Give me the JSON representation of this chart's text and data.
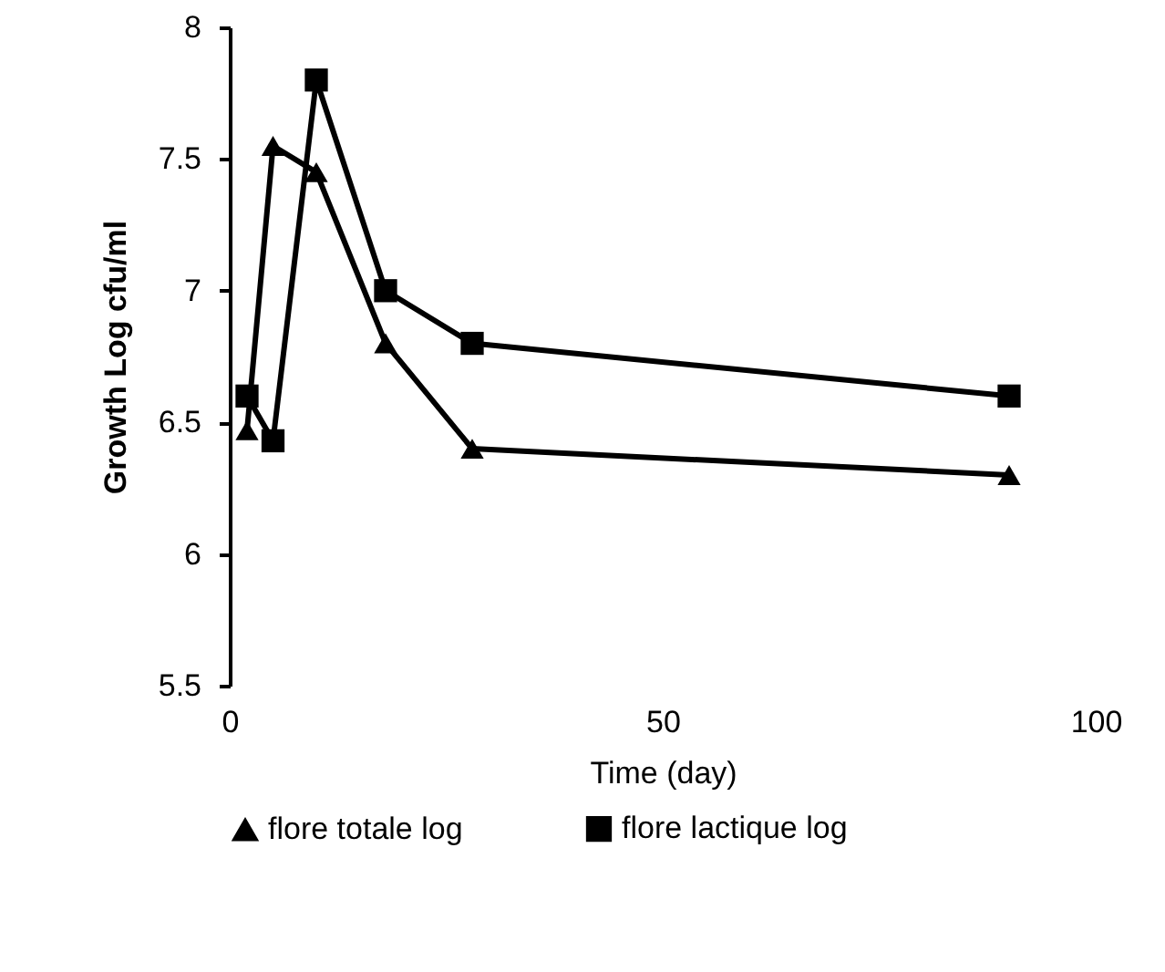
{
  "chart_data": {
    "type": "line",
    "xlabel": "Time (day)",
    "ylabel": "Growth Log cfu/ml",
    "xlim": [
      0,
      100
    ],
    "xticks": [
      0,
      50,
      100
    ],
    "ylim": [
      5.5,
      8
    ],
    "yticks": [
      5.5,
      6,
      6.5,
      7,
      7.5,
      8
    ],
    "grid": false,
    "legend": "bottom",
    "series": [
      {
        "name": "flore totale  log",
        "color": "#000000",
        "marker": "triangle",
        "x": [
          2,
          5,
          10,
          18,
          28,
          90
        ],
        "values": [
          6.47,
          7.55,
          7.45,
          6.8,
          6.4,
          6.3
        ]
      },
      {
        "name": "flore lactique  log",
        "color": "#000000",
        "marker": "square",
        "x": [
          2,
          5,
          10,
          18,
          28,
          90
        ],
        "values": [
          6.6,
          6.43,
          7.8,
          7.0,
          6.8,
          6.6
        ]
      }
    ]
  }
}
